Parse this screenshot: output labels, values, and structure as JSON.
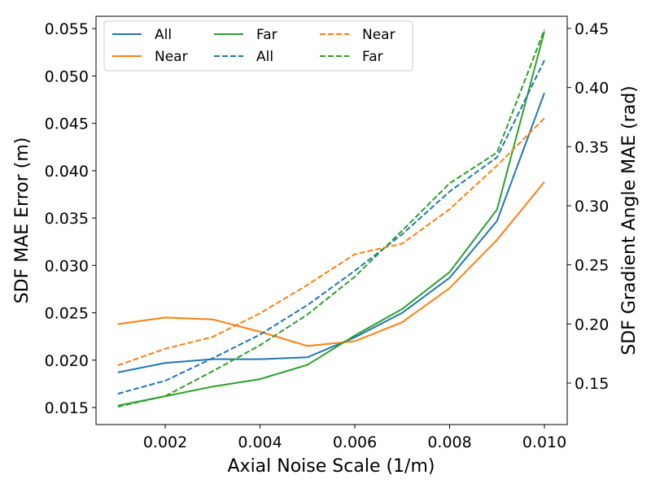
{
  "chart_data": {
    "type": "line",
    "title": "",
    "xlabel": "Axial Noise Scale (1/m)",
    "ylabel": "SDF MAE Error (m)",
    "ylabel_right": "SDF Gradient Angle MAE (rad)",
    "xlim": [
      0.00054,
      0.01048
    ],
    "ylim": [
      0.0132,
      0.0563
    ],
    "ylim_right": [
      0.1149,
      0.4603
    ],
    "xticks": [
      "0.002",
      "0.004",
      "0.006",
      "0.008",
      "0.010"
    ],
    "yticks": [
      "0.015",
      "0.020",
      "0.025",
      "0.030",
      "0.035",
      "0.040",
      "0.045",
      "0.050",
      "0.055"
    ],
    "yticks_right": [
      "0.15",
      "0.20",
      "0.25",
      "0.30",
      "0.35",
      "0.40",
      "0.45"
    ],
    "grid": false,
    "legend_placement": "top-left",
    "x": [
      0.001,
      0.002,
      0.003,
      0.004,
      0.005,
      0.006,
      0.007,
      0.008,
      0.009,
      0.01
    ],
    "series": [
      {
        "name": "All",
        "axis": "left",
        "style": "solid",
        "color": "#1f77b4",
        "values": [
          0.0187,
          0.0197,
          0.0201,
          0.0201,
          0.0203,
          0.0224,
          0.025,
          0.0287,
          0.0347,
          0.0482
        ]
      },
      {
        "name": "Near",
        "axis": "left",
        "style": "solid",
        "color": "#ff7f0e",
        "values": [
          0.0238,
          0.0245,
          0.0243,
          0.023,
          0.0215,
          0.022,
          0.024,
          0.0276,
          0.0327,
          0.0388
        ]
      },
      {
        "name": "Far",
        "axis": "left",
        "style": "solid",
        "color": "#2ca02c",
        "values": [
          0.0152,
          0.0162,
          0.0172,
          0.018,
          0.0195,
          0.0226,
          0.0254,
          0.0293,
          0.0359,
          0.0547
        ]
      },
      {
        "name": "All",
        "axis": "right",
        "style": "dashed",
        "color": "#1f77b4",
        "values": [
          0.141,
          0.152,
          0.171,
          0.191,
          0.216,
          0.245,
          0.276,
          0.312,
          0.341,
          0.423
        ]
      },
      {
        "name": "Near",
        "axis": "right",
        "style": "dashed",
        "color": "#ff7f0e",
        "values": [
          0.165,
          0.179,
          0.189,
          0.209,
          0.233,
          0.259,
          0.268,
          0.297,
          0.334,
          0.374
        ]
      },
      {
        "name": "Far",
        "axis": "right",
        "style": "dashed",
        "color": "#2ca02c",
        "values": [
          0.13,
          0.139,
          0.16,
          0.182,
          0.208,
          0.24,
          0.279,
          0.319,
          0.345,
          0.449
        ]
      }
    ]
  }
}
